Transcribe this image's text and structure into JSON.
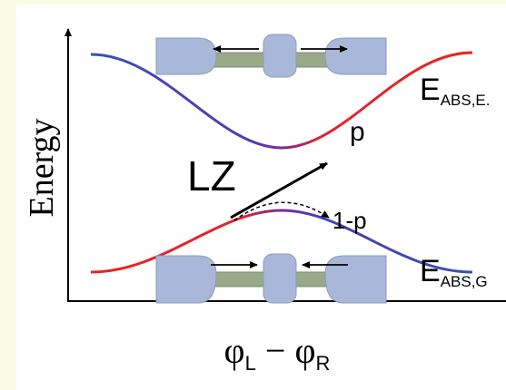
{
  "axes": {
    "y_label": "Energy",
    "x_label": {
      "left_symbol": "φ",
      "left_sub": "L",
      "operator": "−",
      "right_symbol": "φ",
      "right_sub": "R"
    }
  },
  "states": {
    "excited": {
      "symbol": "E",
      "sub": "ABS,E."
    },
    "ground": {
      "symbol": "E",
      "sub": "ABS,G"
    }
  },
  "transition": {
    "label": "LZ",
    "stay_probability": "p",
    "switch_probability": "1-p"
  }
}
